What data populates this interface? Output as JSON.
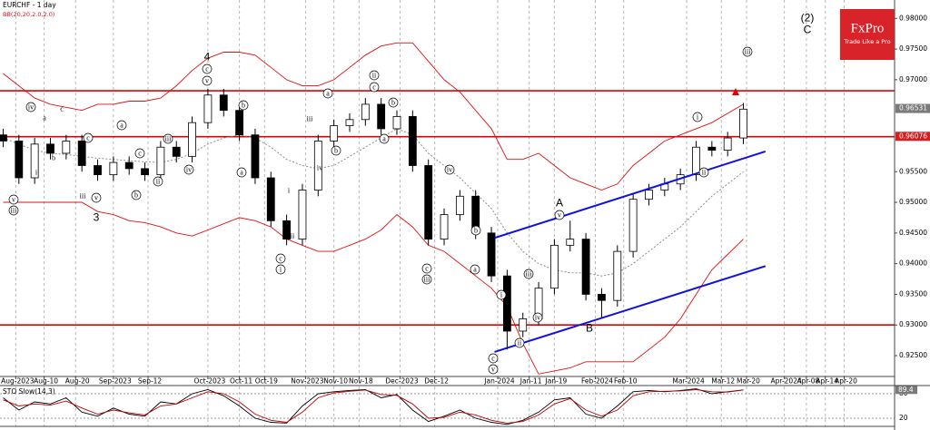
{
  "chart_data": [
    {
      "type": "candlestick",
      "title": "EURCHF - 1 day",
      "indicator_label": "BB(20,20,2.0,2.0)",
      "logo": "FxPro",
      "logo_tagline": "Trade Like a Pro",
      "x": [
        "2023-07-28",
        "2023-08-02",
        "2023-08-07",
        "2023-08-12",
        "2023-08-17",
        "2023-08-22",
        "2023-08-27",
        "2023-09-01",
        "2023-09-06",
        "2023-09-11",
        "2023-09-16",
        "2023-09-21",
        "2023-09-26",
        "2023-10-01",
        "2023-10-06",
        "2023-10-11",
        "2023-10-16",
        "2023-10-21",
        "2023-10-26",
        "2023-10-31",
        "2023-11-05",
        "2023-11-10",
        "2023-11-15",
        "2023-11-20",
        "2023-11-25",
        "2023-11-30",
        "2023-12-05",
        "2023-12-10",
        "2023-12-15",
        "2023-12-20",
        "2023-12-25",
        "2023-12-30",
        "2024-01-04",
        "2024-01-09",
        "2024-01-14",
        "2024-01-19",
        "2024-01-24",
        "2024-01-29",
        "2024-02-03",
        "2024-02-08",
        "2024-02-13",
        "2024-02-18",
        "2024-02-23",
        "2024-02-28",
        "2024-03-04",
        "2024-03-09",
        "2024-03-14",
        "2024-03-19"
      ],
      "open": [
        0.961,
        0.96,
        0.954,
        0.9595,
        0.958,
        0.96,
        0.956,
        0.9545,
        0.9565,
        0.9555,
        0.9545,
        0.959,
        0.9575,
        0.963,
        0.9675,
        0.965,
        0.961,
        0.954,
        0.947,
        0.944,
        0.952,
        0.96,
        0.9625,
        0.9635,
        0.966,
        0.962,
        0.964,
        0.956,
        0.944,
        0.948,
        0.951,
        0.945,
        0.938,
        0.929,
        0.931,
        0.936,
        0.943,
        0.944,
        0.935,
        0.934,
        0.942,
        0.9505,
        0.952,
        0.953,
        0.9545,
        0.959,
        0.9585,
        0.9605
      ],
      "high": [
        0.962,
        0.961,
        0.9605,
        0.9605,
        0.961,
        0.961,
        0.957,
        0.9575,
        0.9575,
        0.9565,
        0.96,
        0.96,
        0.964,
        0.9685,
        0.9685,
        0.966,
        0.962,
        0.955,
        0.948,
        0.953,
        0.961,
        0.9635,
        0.9645,
        0.967,
        0.967,
        0.965,
        0.965,
        0.957,
        0.949,
        0.952,
        0.952,
        0.946,
        0.939,
        0.932,
        0.937,
        0.944,
        0.947,
        0.945,
        0.936,
        0.943,
        0.9515,
        0.953,
        0.954,
        0.9555,
        0.96,
        0.96,
        0.9615,
        0.9662
      ],
      "low": [
        0.959,
        0.953,
        0.953,
        0.957,
        0.957,
        0.955,
        0.9535,
        0.9535,
        0.9545,
        0.9535,
        0.9535,
        0.9565,
        0.9565,
        0.962,
        0.964,
        0.96,
        0.953,
        0.946,
        0.943,
        0.943,
        0.951,
        0.959,
        0.9615,
        0.9625,
        0.961,
        0.961,
        0.955,
        0.943,
        0.943,
        0.947,
        0.944,
        0.937,
        0.926,
        0.928,
        0.93,
        0.935,
        0.942,
        0.934,
        0.931,
        0.933,
        0.941,
        0.9495,
        0.951,
        0.952,
        0.9535,
        0.9575,
        0.9575,
        0.9595
      ],
      "close": [
        0.96,
        0.954,
        0.9595,
        0.958,
        0.96,
        0.956,
        0.9545,
        0.9565,
        0.9555,
        0.9545,
        0.959,
        0.9575,
        0.963,
        0.9675,
        0.965,
        0.961,
        0.954,
        0.947,
        0.944,
        0.952,
        0.96,
        0.9625,
        0.9635,
        0.966,
        0.962,
        0.964,
        0.956,
        0.944,
        0.948,
        0.951,
        0.945,
        0.938,
        0.929,
        0.931,
        0.936,
        0.943,
        0.944,
        0.935,
        0.934,
        0.942,
        0.9505,
        0.952,
        0.953,
        0.9545,
        0.959,
        0.9585,
        0.9605,
        0.9652
      ],
      "up_color": "#ffffff",
      "down_color": "#000000",
      "series": [
        {
          "color": "#e01010",
          "style": "solid",
          "values": [
            0.971,
            0.969,
            0.967,
            0.966,
            0.9655,
            0.965,
            0.966,
            0.966,
            0.9665,
            0.9665,
            0.967,
            0.969,
            0.9715,
            0.9735,
            0.9745,
            0.9745,
            0.974,
            0.972,
            0.97,
            0.969,
            0.969,
            0.97,
            0.972,
            0.974,
            0.9755,
            0.976,
            0.976,
            0.973,
            0.97,
            0.968,
            0.965,
            0.962,
            0.957,
            0.957,
            0.958,
            0.956,
            0.954,
            0.953,
            0.952,
            0.953,
            0.956,
            0.958,
            0.96,
            0.961,
            0.962,
            0.963,
            0.9645,
            0.966
          ]
        },
        {
          "color": "#808080",
          "style": "dotted",
          "values": [
            0.9605,
            0.9595,
            0.9585,
            0.958,
            0.9578,
            0.9575,
            0.9572,
            0.957,
            0.9568,
            0.9566,
            0.9565,
            0.957,
            0.958,
            0.9595,
            0.9605,
            0.961,
            0.9605,
            0.959,
            0.957,
            0.956,
            0.9555,
            0.956,
            0.9575,
            0.959,
            0.9605,
            0.962,
            0.961,
            0.958,
            0.956,
            0.954,
            0.9515,
            0.949,
            0.945,
            0.942,
            0.94,
            0.939,
            0.9385,
            0.9385,
            0.938,
            0.9385,
            0.94,
            0.942,
            0.944,
            0.946,
            0.9485,
            0.951,
            0.953,
            0.955
          ]
        },
        {
          "color": "#e01010",
          "style": "solid",
          "values": [
            0.95,
            0.95,
            0.95,
            0.95,
            0.95,
            0.95,
            0.9485,
            0.948,
            0.947,
            0.9467,
            0.946,
            0.945,
            0.9445,
            0.9455,
            0.9465,
            0.9475,
            0.947,
            0.946,
            0.944,
            0.943,
            0.942,
            0.942,
            0.943,
            0.944,
            0.9455,
            0.948,
            0.946,
            0.943,
            0.942,
            0.94,
            0.938,
            0.936,
            0.933,
            0.927,
            0.922,
            0.9225,
            0.923,
            0.924,
            0.924,
            0.924,
            0.924,
            0.926,
            0.928,
            0.931,
            0.935,
            0.939,
            0.9415,
            0.944
          ]
        }
      ],
      "levels": [
        0.9682,
        0.9607,
        0.93
      ],
      "level_color": "#e00000",
      "trend_lines": [
        {
          "x": [
            "2023-12-31",
            "2024-03-26"
          ],
          "y": [
            0.9442,
            0.9583
          ]
        },
        {
          "x": [
            "2023-12-31",
            "2024-03-26"
          ],
          "y": [
            0.9256,
            0.9396
          ]
        }
      ],
      "trend_color": "#1010e0",
      "price_tags": [
        {
          "value": 0.96531,
          "color": "#7a7a7a"
        },
        {
          "value": 0.96076,
          "color": "#d02020"
        }
      ],
      "xlim": [
        "2023-07-27",
        "2024-05-06"
      ],
      "xticks": [
        {
          "value": "2023-08-01",
          "label": "Aug-2023"
        },
        {
          "value": "2023-08-10",
          "label": "Aug-10"
        },
        {
          "value": "2023-08-20",
          "label": "Aug-20"
        },
        {
          "value": "2023-09-01",
          "label": "Sep-2023"
        },
        {
          "value": "2023-09-12",
          "label": "Sep-12"
        },
        {
          "value": "2023-10-01",
          "label": "Oct-2023"
        },
        {
          "value": "2023-10-11",
          "label": "Oct-11"
        },
        {
          "value": "2023-10-19",
          "label": "Oct-19"
        },
        {
          "value": "2023-11-01",
          "label": "Nov-2023"
        },
        {
          "value": "2023-11-10",
          "label": "Nov-10"
        },
        {
          "value": "2023-11-18",
          "label": "Nov-18"
        },
        {
          "value": "2023-12-01",
          "label": "Dec-2023"
        },
        {
          "value": "2023-12-12",
          "label": "Dec-12"
        },
        {
          "value": "2024-01-01",
          "label": "Jan-2024"
        },
        {
          "value": "2024-01-11",
          "label": "Jan-11"
        },
        {
          "value": "2024-01-19",
          "label": "Jan-19"
        },
        {
          "value": "2024-02-01",
          "label": "Feb-2024"
        },
        {
          "value": "2024-02-10",
          "label": "Feb-10"
        },
        {
          "value": "2024-03-01",
          "label": "Mar-2024"
        },
        {
          "value": "2024-03-12",
          "label": "Mar-12"
        },
        {
          "value": "2024-03-20",
          "label": "Mar-20"
        },
        {
          "value": "2024-04-01",
          "label": "Apr-2024"
        },
        {
          "value": "2024-04-08",
          "label": "Apr-08"
        },
        {
          "value": "2024-04-14",
          "label": "Apr-14"
        },
        {
          "value": "2024-04-20",
          "label": "Apr-20"
        }
      ],
      "ylim": [
        0.9216,
        0.983
      ],
      "yticks": [
        {
          "value": 0.98,
          "label": "0.98000"
        },
        {
          "value": 0.975,
          "label": "0.97500"
        },
        {
          "value": 0.97,
          "label": "0.97000"
        },
        {
          "value": 0.955,
          "label": "0.95500"
        },
        {
          "value": 0.95,
          "label": "0.95000"
        },
        {
          "value": 0.945,
          "label": "0.94500"
        },
        {
          "value": 0.94,
          "label": "0.94000"
        },
        {
          "value": 0.935,
          "label": "0.93500"
        },
        {
          "value": 0.93,
          "label": "0.93000"
        },
        {
          "value": 0.925,
          "label": "0.92500"
        }
      ],
      "grid": true,
      "annotations": [
        "iv",
        "v",
        "iii",
        "i",
        "iii",
        "v",
        "3",
        "b",
        "a",
        "c",
        "c",
        "a",
        "b",
        "c",
        "iii",
        "ii",
        "iv",
        "4",
        "c",
        "v",
        "b",
        "a",
        "c",
        "i",
        "i",
        "ii",
        "iii",
        "iv",
        "a",
        "b",
        "ii",
        "c",
        "b",
        "a",
        "iv",
        "c",
        "iii",
        "a",
        "b",
        "i",
        "iii",
        "ii",
        "iv",
        "c",
        "v",
        "A",
        "v",
        "B",
        "i",
        "ii",
        "(2)",
        "C",
        "iii"
      ]
    },
    {
      "type": "line",
      "title": "STO Slow(14,3)",
      "series": [
        {
          "color": "#000000",
          "values": [
            70,
            40,
            60,
            55,
            70,
            35,
            25,
            45,
            30,
            25,
            60,
            55,
            80,
            90,
            75,
            50,
            20,
            10,
            8,
            50,
            80,
            85,
            88,
            90,
            70,
            78,
            40,
            12,
            25,
            40,
            20,
            10,
            5,
            15,
            35,
            65,
            70,
            30,
            20,
            50,
            85,
            88,
            85,
            88,
            92,
            80,
            85,
            89.4
          ]
        },
        {
          "color": "#c00000",
          "values": [
            65,
            50,
            55,
            52,
            62,
            45,
            30,
            40,
            33,
            28,
            50,
            55,
            70,
            85,
            80,
            60,
            30,
            15,
            10,
            35,
            70,
            82,
            86,
            89,
            78,
            76,
            55,
            20,
            22,
            35,
            28,
            15,
            8,
            12,
            28,
            55,
            68,
            40,
            25,
            40,
            75,
            85,
            86,
            87,
            90,
            85,
            84,
            89
          ]
        }
      ],
      "ylim": [
        0,
        100
      ],
      "yticks": [
        20,
        80
      ],
      "price_tag": 89.4
    }
  ]
}
